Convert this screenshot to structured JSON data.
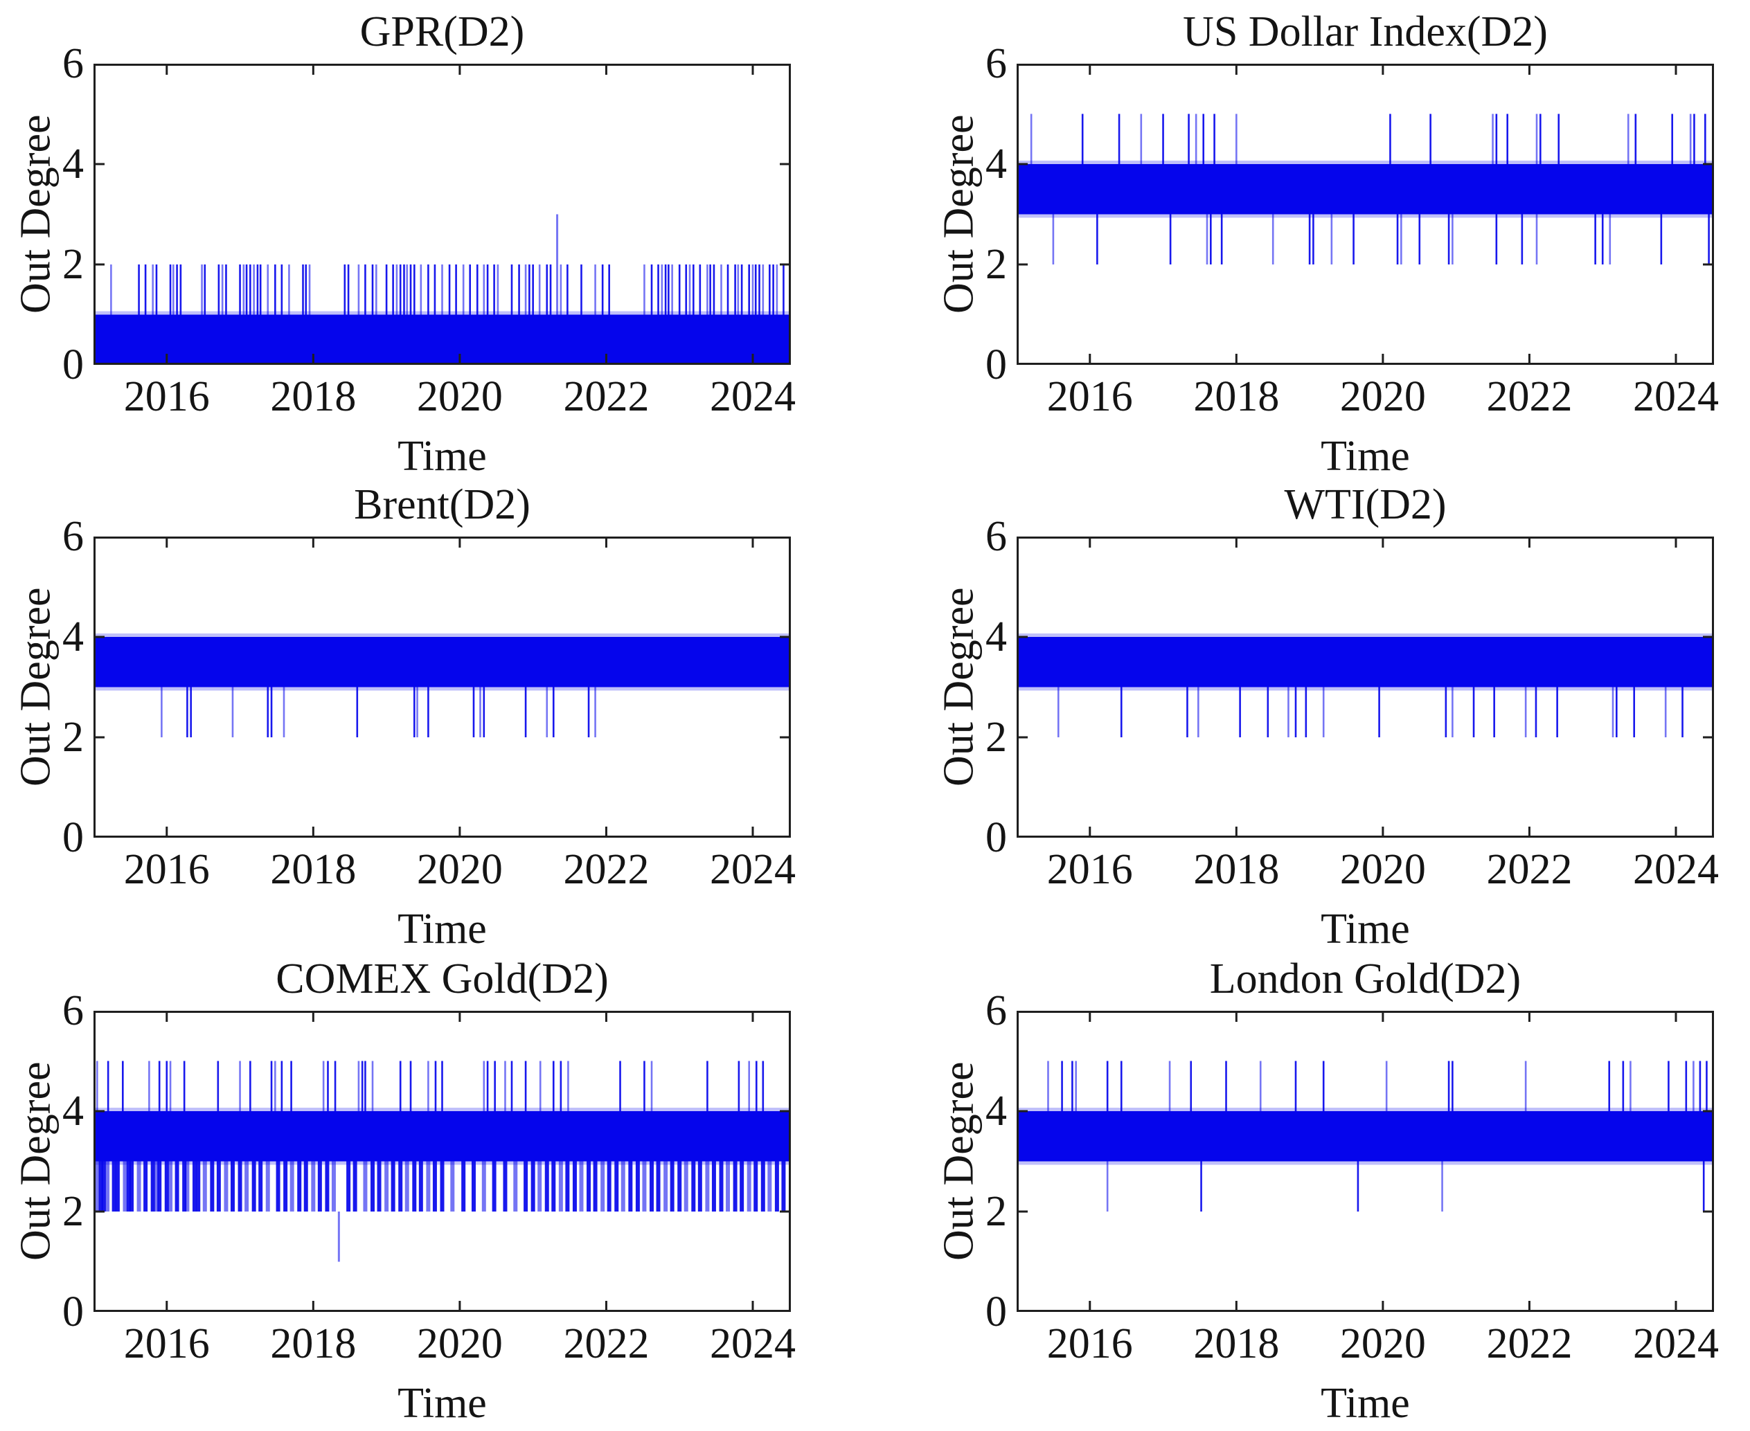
{
  "figure": {
    "background": "#ffffff",
    "series_color": "#0505ec",
    "axis_color": "#1e1e1e",
    "text_color": "#141414",
    "grid": false,
    "legend": null,
    "layout": "3 rows x 2 columns of spike time-series subplots"
  },
  "chart_data": [
    {
      "type": "line",
      "title": "GPR(D2)",
      "xlabel": "Time",
      "ylabel": "Out Degree",
      "xlim": [
        2015,
        2024.52
      ],
      "ylim": [
        0,
        6
      ],
      "xticks": [
        2016,
        2018,
        2020,
        2022,
        2024
      ],
      "yticks": [
        0,
        2,
        4,
        6
      ],
      "band": [
        0,
        1
      ],
      "spikes": [
        {
          "from": 1,
          "to": 2,
          "w": 2.6,
          "times": [
            2015.24,
            2015.62,
            2015.71,
            2015.81,
            2015.86,
            2016.05,
            2016.09,
            2016.14,
            2016.19,
            2016.48,
            2016.52,
            2016.71,
            2016.76,
            2016.81,
            2017.0,
            2017.05,
            2017.09,
            2017.14,
            2017.19,
            2017.24,
            2017.28,
            2017.38,
            2017.48,
            2017.57,
            2017.67,
            2017.86,
            2017.9,
            2017.95,
            2018.43,
            2018.48,
            2018.62,
            2018.71,
            2018.81,
            2018.86,
            2019.0,
            2019.09,
            2019.14,
            2019.19,
            2019.24,
            2019.28,
            2019.33,
            2019.38,
            2019.47,
            2019.57,
            2019.66,
            2019.76,
            2019.86,
            2019.95,
            2020.05,
            2020.14,
            2020.24,
            2020.33,
            2020.38,
            2020.47,
            2020.52,
            2020.71,
            2020.81,
            2020.9,
            2020.95,
            2021.0,
            2021.09,
            2021.19,
            2021.24,
            2021.38,
            2021.47,
            2021.66,
            2021.85,
            2021.95,
            2022.04,
            2022.52,
            2022.62,
            2022.71,
            2022.76,
            2022.81,
            2022.85,
            2022.9,
            2023.0,
            2023.09,
            2023.14,
            2023.19,
            2023.28,
            2023.38,
            2023.42,
            2023.47,
            2023.57,
            2023.66,
            2023.76,
            2023.8,
            2023.85,
            2023.95,
            2024.0,
            2024.04,
            2024.09,
            2024.14,
            2024.23,
            2024.28,
            2024.33,
            2024.42
          ]
        },
        {
          "from": 1,
          "to": 3,
          "w": 3,
          "times": [
            2021.33
          ]
        }
      ]
    },
    {
      "type": "line",
      "title": "US Dollar Index(D2)",
      "xlabel": "Time",
      "ylabel": "Out Degree",
      "xlim": [
        2015,
        2024.52
      ],
      "ylim": [
        0,
        6
      ],
      "xticks": [
        2016,
        2018,
        2020,
        2022,
        2024
      ],
      "yticks": [
        0,
        2,
        4,
        6
      ],
      "band": [
        3,
        4
      ],
      "spikes": [
        {
          "from": 4,
          "to": 5,
          "w": 2.6,
          "times": [
            2015.2,
            2015.9,
            2016.4,
            2016.7,
            2017.0,
            2017.35,
            2017.45,
            2017.55,
            2017.7,
            2018.0,
            2020.1,
            2020.65,
            2021.5,
            2021.55,
            2021.7,
            2022.1,
            2022.15,
            2022.4,
            2023.35,
            2023.45,
            2023.95,
            2024.2,
            2024.25,
            2024.4
          ]
        },
        {
          "from": 3,
          "to": 2,
          "w": 2.6,
          "times": [
            2015.5,
            2016.1,
            2017.1,
            2017.6,
            2017.65,
            2017.8,
            2018.5,
            2019.0,
            2019.05,
            2019.3,
            2019.6,
            2020.2,
            2020.25,
            2020.5,
            2020.9,
            2020.95,
            2021.55,
            2021.9,
            2022.1,
            2022.9,
            2023.0,
            2023.1,
            2023.8,
            2024.45
          ]
        }
      ]
    },
    {
      "type": "line",
      "title": "Brent(D2)",
      "xlabel": "Time",
      "ylabel": "Out Degree",
      "xlim": [
        2015,
        2024.52
      ],
      "ylim": [
        0,
        6
      ],
      "xticks": [
        2016,
        2018,
        2020,
        2022,
        2024
      ],
      "yticks": [
        0,
        2,
        4,
        6
      ],
      "band": [
        3,
        4
      ],
      "spikes": [
        {
          "from": 3,
          "to": 2,
          "w": 2.6,
          "times": [
            2015.93,
            2016.28,
            2016.33,
            2016.9,
            2017.38,
            2017.43,
            2017.6,
            2018.6,
            2019.38,
            2019.42,
            2019.57,
            2020.19,
            2020.28,
            2020.33,
            2020.9,
            2021.19,
            2021.28,
            2021.76,
            2021.85
          ]
        }
      ]
    },
    {
      "type": "line",
      "title": "WTI(D2)",
      "xlabel": "Time",
      "ylabel": "Out Degree",
      "xlim": [
        2015,
        2024.52
      ],
      "ylim": [
        0,
        6
      ],
      "xticks": [
        2016,
        2018,
        2020,
        2022,
        2024
      ],
      "yticks": [
        0,
        2,
        4,
        6
      ],
      "band": [
        3,
        4
      ],
      "spikes": [
        {
          "from": 3,
          "to": 2,
          "w": 2.6,
          "times": [
            2015.57,
            2016.43,
            2017.33,
            2017.48,
            2018.05,
            2018.43,
            2018.71,
            2018.81,
            2018.95,
            2019.19,
            2019.95,
            2020.86,
            2020.95,
            2021.24,
            2021.52,
            2021.95,
            2022.09,
            2022.38,
            2023.14,
            2023.19,
            2023.43,
            2023.86,
            2024.09
          ]
        }
      ]
    },
    {
      "type": "line",
      "title": "COMEX Gold(D2)",
      "xlabel": "Time",
      "ylabel": "Out Degree",
      "xlim": [
        2015,
        2024.52
      ],
      "ylim": [
        0,
        6
      ],
      "xticks": [
        2016,
        2018,
        2020,
        2022,
        2024
      ],
      "yticks": [
        0,
        2,
        4,
        6
      ],
      "band": [
        3,
        4
      ],
      "spikes": [
        {
          "from": 4,
          "to": 5,
          "w": 2.6,
          "times": [
            2015.05,
            2015.2,
            2015.4,
            2015.76,
            2015.9,
            2016.0,
            2016.05,
            2016.24,
            2016.7,
            2017.0,
            2017.14,
            2017.43,
            2017.48,
            2017.57,
            2017.7,
            2018.14,
            2018.2,
            2018.3,
            2018.62,
            2018.67,
            2018.71,
            2018.81,
            2019.19,
            2019.33,
            2019.57,
            2019.67,
            2019.76,
            2020.33,
            2020.38,
            2020.48,
            2020.62,
            2020.71,
            2020.9,
            2021.1,
            2021.28,
            2021.38,
            2021.48,
            2022.19,
            2022.52,
            2022.62,
            2023.38,
            2023.81,
            2023.95,
            2024.05,
            2024.14
          ]
        },
        {
          "from": 3,
          "to": 2,
          "w": 6,
          "times": [
            2015.05,
            2015.1,
            2015.14,
            2015.19,
            2015.28,
            2015.33,
            2015.43,
            2015.48,
            2015.52,
            2015.62,
            2015.71,
            2015.81,
            2015.86,
            2015.9,
            2016.0,
            2016.05,
            2016.14,
            2016.24,
            2016.28,
            2016.38,
            2016.43,
            2016.52,
            2016.62,
            2016.71,
            2016.81,
            2016.9,
            2017.0,
            2017.09,
            2017.19,
            2017.28,
            2017.38,
            2017.52,
            2017.62,
            2017.71,
            2017.81,
            2017.9,
            2018.0,
            2018.09,
            2018.19,
            2018.28,
            2018.48,
            2018.57,
            2018.71,
            2018.81,
            2018.9,
            2019.0,
            2019.09,
            2019.19,
            2019.28,
            2019.38,
            2019.47,
            2019.57,
            2019.66,
            2019.76,
            2019.9,
            2020.05,
            2020.19,
            2020.33,
            2020.47,
            2020.62,
            2020.76,
            2020.9,
            2021.0,
            2021.09,
            2021.19,
            2021.28,
            2021.38,
            2021.47,
            2021.57,
            2021.66,
            2021.76,
            2021.85,
            2021.95,
            2022.04,
            2022.14,
            2022.23,
            2022.33,
            2022.43,
            2022.52,
            2022.62,
            2022.71,
            2022.81,
            2022.9,
            2023.0,
            2023.09,
            2023.19,
            2023.28,
            2023.38,
            2023.47,
            2023.57,
            2023.66,
            2023.76,
            2023.85,
            2023.95,
            2024.04,
            2024.14,
            2024.23,
            2024.33,
            2024.42
          ]
        },
        {
          "from": 2,
          "to": 1,
          "w": 3,
          "times": [
            2018.35
          ]
        }
      ]
    },
    {
      "type": "line",
      "title": "London Gold(D2)",
      "xlabel": "Time",
      "ylabel": "Out Degree",
      "xlim": [
        2015,
        2024.52
      ],
      "ylim": [
        0,
        6
      ],
      "xticks": [
        2016,
        2018,
        2020,
        2022,
        2024
      ],
      "yticks": [
        0,
        2,
        4,
        6
      ],
      "band": [
        3,
        4
      ],
      "spikes": [
        {
          "from": 4,
          "to": 5,
          "w": 2.6,
          "times": [
            2015.43,
            2015.62,
            2015.76,
            2015.81,
            2016.24,
            2016.43,
            2017.09,
            2017.38,
            2017.86,
            2018.33,
            2018.81,
            2019.19,
            2020.05,
            2020.9,
            2020.95,
            2021.95,
            2023.09,
            2023.28,
            2023.38,
            2023.9,
            2024.14,
            2024.24,
            2024.33,
            2024.42
          ]
        },
        {
          "from": 3,
          "to": 2,
          "w": 2.6,
          "times": [
            2016.24,
            2017.52,
            2019.66,
            2020.81,
            2024.38
          ]
        }
      ]
    }
  ]
}
